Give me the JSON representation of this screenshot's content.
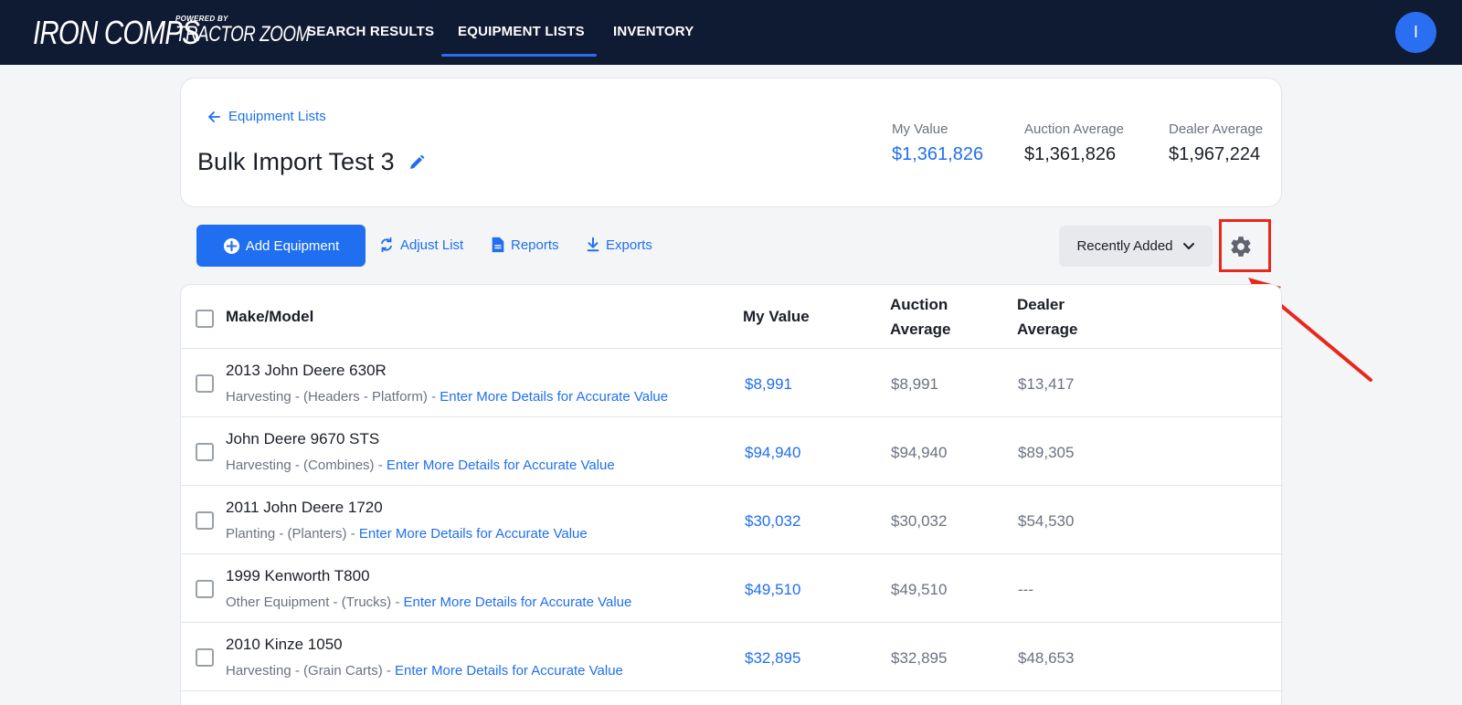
{
  "nav": {
    "logo_main": "IRON COMPS",
    "logo_powered": "POWERED BY",
    "logo_tz": "TRACTOR ZOOM",
    "links": [
      {
        "label": "SEARCH RESULTS"
      },
      {
        "label": "EQUIPMENT LISTS",
        "active": true
      },
      {
        "label": "INVENTORY"
      }
    ],
    "avatar_initial": "I"
  },
  "header": {
    "back_label": "Equipment Lists",
    "title": "Bulk Import Test 3",
    "stats": [
      {
        "label": "My Value",
        "value": "$1,361,826"
      },
      {
        "label": "Auction Average",
        "value": "$1,361,826"
      },
      {
        "label": "Dealer Average",
        "value": "$1,967,224"
      }
    ]
  },
  "toolbar": {
    "add_label": "Add Equipment",
    "adjust_label": "Adjust List",
    "reports_label": "Reports",
    "exports_label": "Exports",
    "sort_label": "Recently Added"
  },
  "table": {
    "headers": {
      "make_model": "Make/Model",
      "my_value": "My Value",
      "auction_line1": "Auction",
      "auction_line2": "Average",
      "dealer_line1": "Dealer",
      "dealer_line2": "Average"
    },
    "rows": [
      {
        "name": "2013 John Deere 630R",
        "category": "Harvesting - (Headers - Platform)",
        "link": "Enter More Details for Accurate Value",
        "my_value": "$8,991",
        "auction": "$8,991",
        "dealer": "$13,417"
      },
      {
        "name": "John Deere 9670 STS",
        "category": "Harvesting - (Combines)",
        "link": "Enter More Details for Accurate Value",
        "my_value": "$94,940",
        "auction": "$94,940",
        "dealer": "$89,305"
      },
      {
        "name": "2011 John Deere 1720",
        "category": "Planting - (Planters)",
        "link": "Enter More Details for Accurate Value",
        "my_value": "$30,032",
        "auction": "$30,032",
        "dealer": "$54,530"
      },
      {
        "name": "1999 Kenworth T800",
        "category": "Other Equipment - (Trucks)",
        "link": "Enter More Details for Accurate Value",
        "my_value": "$49,510",
        "auction": "$49,510",
        "dealer": "---"
      },
      {
        "name": "2010 Kinze 1050",
        "category": "Harvesting - (Grain Carts)",
        "link": "Enter More Details for Accurate Value",
        "my_value": "$32,895",
        "auction": "$32,895",
        "dealer": "$48,653"
      }
    ]
  },
  "colors": {
    "nav_bg": "#0f1a33",
    "accent": "#1f6ff0",
    "highlight": "#e8281c"
  }
}
